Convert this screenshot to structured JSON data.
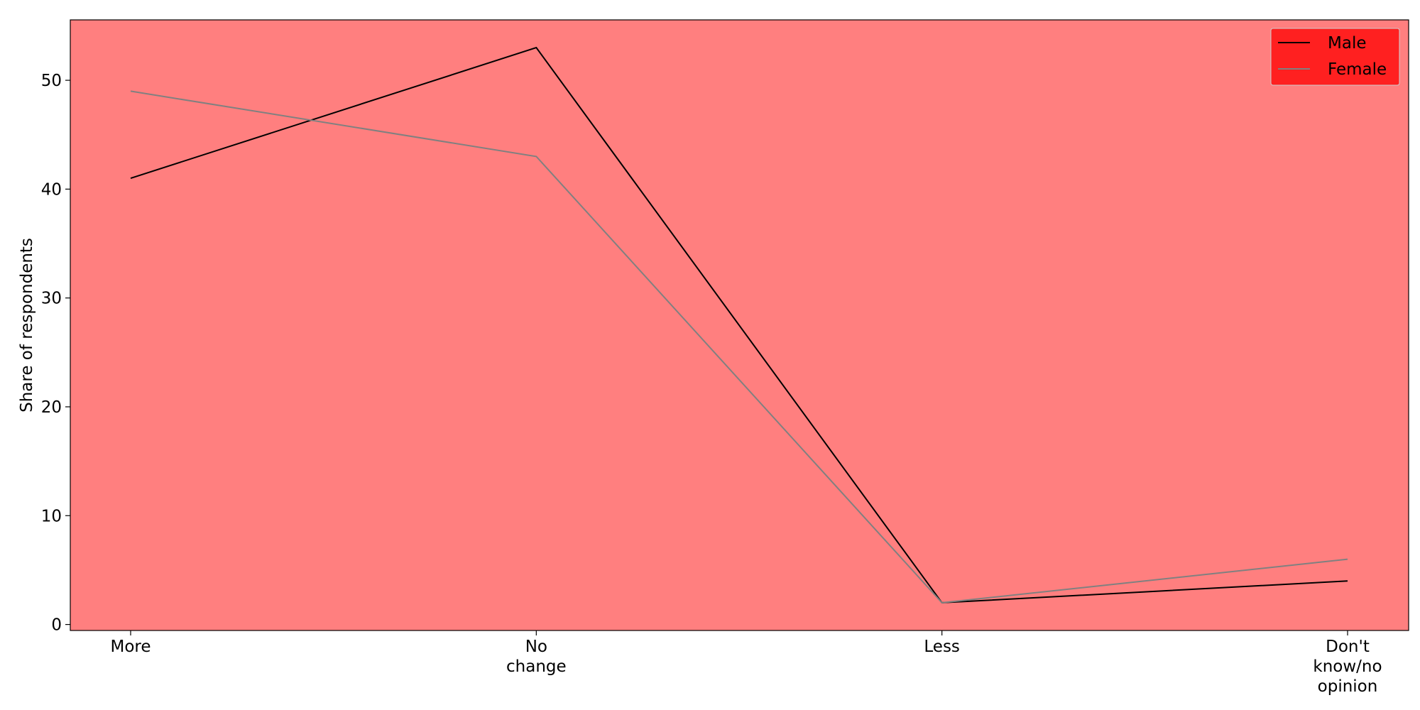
{
  "chart_data": {
    "type": "line",
    "categories": [
      "More",
      "No change",
      "Less",
      "Don't know/no opinion"
    ],
    "category_lines": [
      [
        "More"
      ],
      [
        "No",
        "change"
      ],
      [
        "Less"
      ],
      [
        "Don't",
        "know/no",
        "opinion"
      ]
    ],
    "series": [
      {
        "name": "Male",
        "values": [
          41,
          53,
          2,
          4
        ],
        "color": "#000000"
      },
      {
        "name": "Female",
        "values": [
          49,
          43,
          2,
          6
        ],
        "color": "#808080"
      }
    ],
    "ylabel": "Share of respondents",
    "ylim": [
      -0.55,
      55.55
    ],
    "yticks": [
      0,
      10,
      20,
      30,
      40,
      50
    ],
    "grid": false,
    "legend_position": "top-right",
    "plot_background": "#ff7f7f",
    "legend_background": "#ff2020"
  }
}
